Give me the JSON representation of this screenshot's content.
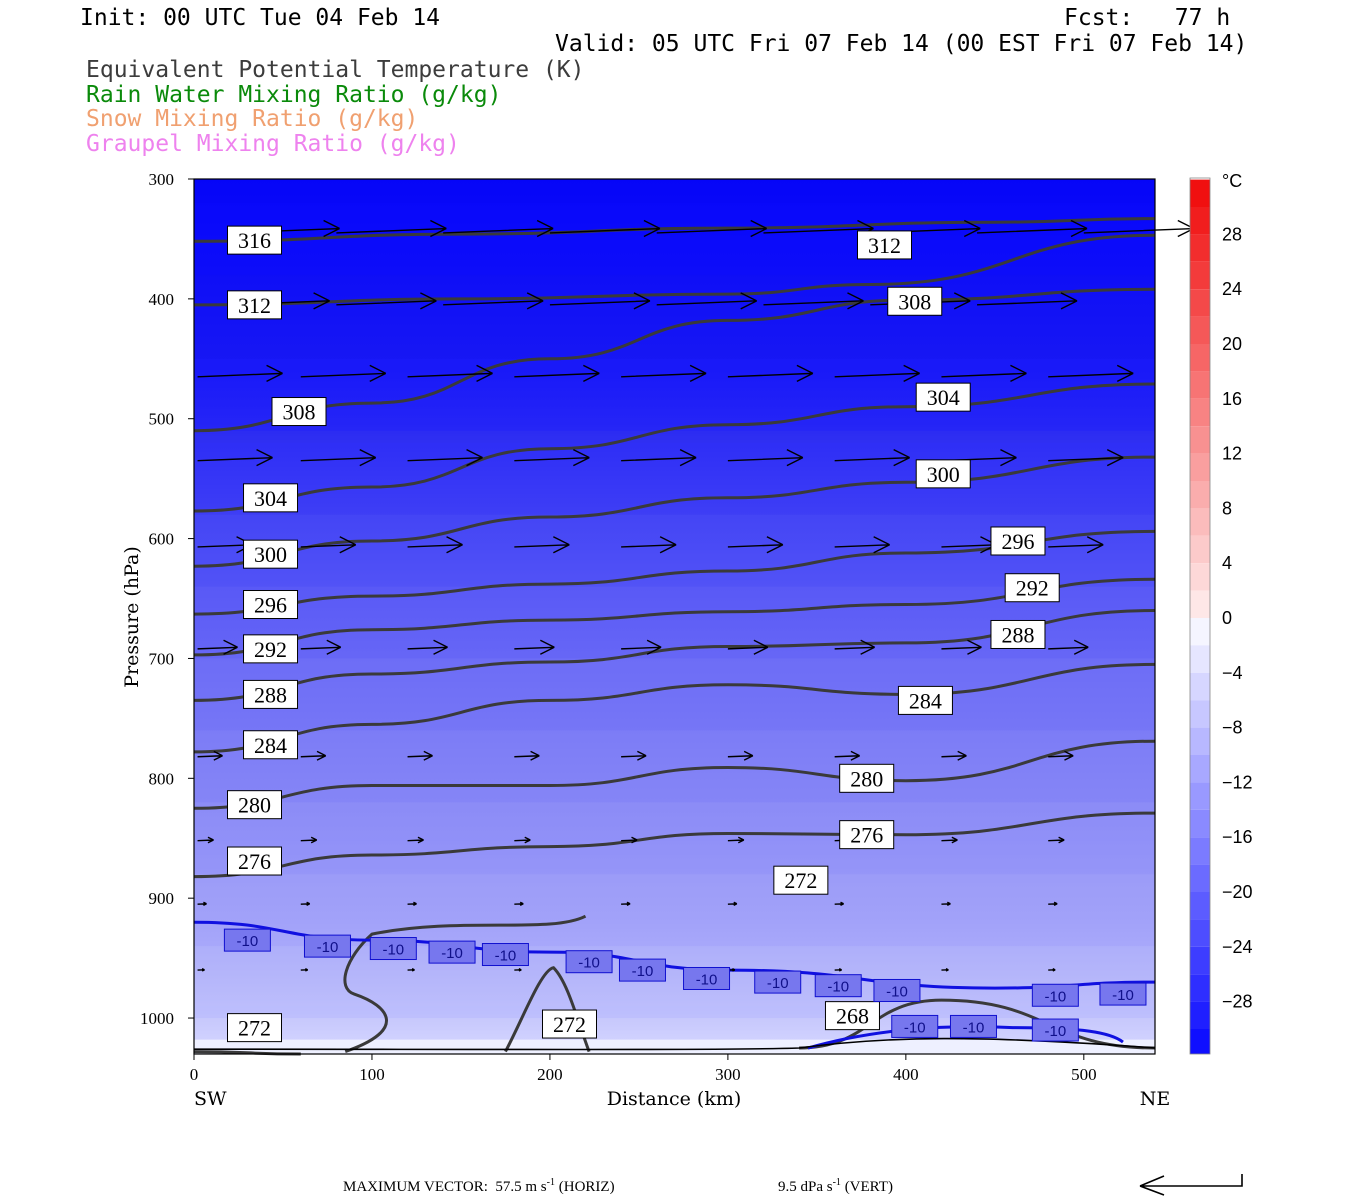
{
  "header": {
    "init": "Init: 00 UTC Tue 04 Feb 14",
    "fcst": "Fcst:   77 h",
    "valid": "Valid: 05 UTC Fri 07 Feb 14 (00 EST Fri 07 Feb 14)",
    "legend": [
      {
        "text": "Equivalent Potential Temperature (K)",
        "color": "#3c3c3c"
      },
      {
        "text": "Rain Water Mixing Ratio (g/kg)",
        "color": "#0a8a0a"
      },
      {
        "text": "Snow Mixing Ratio (g/kg)",
        "color": "#f0a070"
      },
      {
        "text": "Graupel Mixing Ratio (g/kg)",
        "color": "#ee82ee"
      }
    ]
  },
  "footer": {
    "max_vector_label": "MAXIMUM VECTOR:",
    "horiz_value": "57.5 m s",
    "horiz_exp": "-1",
    "horiz_tag": "(HORIZ)",
    "vert_value": "9.5 dPa s",
    "vert_exp": "-1",
    "vert_tag": "(VERT)"
  },
  "chart_data": {
    "type": "cross-section",
    "xlabel": "Distance (km)",
    "ylabel": "Pressure (hPa)",
    "x_left_end": "SW",
    "x_right_end": "NE",
    "xlim": [
      0,
      540
    ],
    "ylim": [
      1030,
      300
    ],
    "xticks": [
      0,
      100,
      200,
      300,
      400,
      500
    ],
    "yticks": [
      300,
      400,
      500,
      600,
      700,
      800,
      900,
      1000
    ],
    "colorbar": {
      "unit": "°C",
      "labels": [
        28,
        24,
        20,
        16,
        12,
        8,
        4,
        0,
        -4,
        -8,
        -12,
        -16,
        -20,
        -24,
        -28
      ],
      "warm_color": "#f01010",
      "cold_color": "#0000ff"
    },
    "theta_e_contours": [
      {
        "value": 316,
        "points": [
          [
            0,
            352
          ],
          [
            150,
            346
          ],
          [
            300,
            341
          ],
          [
            450,
            336
          ],
          [
            540,
            333
          ]
        ],
        "labels": [
          [
            34,
            351
          ]
        ]
      },
      {
        "value": 312,
        "points": [
          [
            0,
            405
          ],
          [
            150,
            400
          ],
          [
            300,
            396
          ],
          [
            380,
            388
          ],
          [
            540,
            347
          ]
        ],
        "labels": [
          [
            34,
            405
          ],
          [
            388,
            355
          ]
        ]
      },
      {
        "value": 308,
        "points": [
          [
            0,
            510
          ],
          [
            100,
            487
          ],
          [
            200,
            450
          ],
          [
            300,
            418
          ],
          [
            400,
            401
          ],
          [
            540,
            392
          ]
        ],
        "labels": [
          [
            59,
            494
          ],
          [
            405,
            402
          ]
        ]
      },
      {
        "value": 304,
        "points": [
          [
            0,
            577
          ],
          [
            100,
            557
          ],
          [
            200,
            525
          ],
          [
            300,
            505
          ],
          [
            400,
            490
          ],
          [
            540,
            471
          ]
        ],
        "labels": [
          [
            43,
            566
          ],
          [
            421,
            482
          ]
        ]
      },
      {
        "value": 300,
        "points": [
          [
            0,
            623
          ],
          [
            100,
            602
          ],
          [
            200,
            582
          ],
          [
            300,
            566
          ],
          [
            400,
            553
          ],
          [
            540,
            532
          ]
        ],
        "labels": [
          [
            43,
            613
          ],
          [
            421,
            546
          ]
        ]
      },
      {
        "value": 296,
        "points": [
          [
            0,
            663
          ],
          [
            100,
            648
          ],
          [
            200,
            638
          ],
          [
            300,
            627
          ],
          [
            400,
            612
          ],
          [
            540,
            594
          ]
        ],
        "labels": [
          [
            43,
            655
          ],
          [
            463,
            602
          ]
        ]
      },
      {
        "value": 292,
        "points": [
          [
            0,
            697
          ],
          [
            100,
            676
          ],
          [
            200,
            668
          ],
          [
            300,
            661
          ],
          [
            400,
            655
          ],
          [
            540,
            634
          ]
        ],
        "labels": [
          [
            43,
            692
          ],
          [
            471,
            641
          ]
        ]
      },
      {
        "value": 288,
        "points": [
          [
            0,
            735
          ],
          [
            100,
            713
          ],
          [
            200,
            703
          ],
          [
            300,
            690
          ],
          [
            400,
            687
          ],
          [
            540,
            660
          ]
        ],
        "labels": [
          [
            43,
            730
          ],
          [
            463,
            680
          ]
        ]
      },
      {
        "value": 284,
        "points": [
          [
            0,
            778
          ],
          [
            100,
            755
          ],
          [
            200,
            735
          ],
          [
            300,
            722
          ],
          [
            400,
            730
          ],
          [
            540,
            705
          ]
        ],
        "labels": [
          [
            43,
            772
          ],
          [
            411,
            735
          ]
        ]
      },
      {
        "value": 280,
        "points": [
          [
            0,
            825
          ],
          [
            100,
            806
          ],
          [
            200,
            806
          ],
          [
            300,
            791
          ],
          [
            400,
            802
          ],
          [
            540,
            769
          ]
        ],
        "labels": [
          [
            34,
            822
          ],
          [
            378,
            800
          ]
        ]
      },
      {
        "value": 276,
        "points": [
          [
            0,
            882
          ],
          [
            100,
            864
          ],
          [
            200,
            857
          ],
          [
            300,
            846
          ],
          [
            400,
            847
          ],
          [
            540,
            829
          ]
        ],
        "labels": [
          [
            34,
            869
          ],
          [
            378,
            847
          ]
        ]
      },
      {
        "value": 272,
        "points": [
          [
            0,
            1028
          ],
          [
            60,
            1030
          ]
        ],
        "labels": [
          [
            34,
            1008
          ],
          [
            211,
            1005
          ],
          [
            341,
            885
          ]
        ]
      },
      {
        "value": 268,
        "points": [
          [
            340,
            1025
          ],
          [
            420,
            985
          ],
          [
            540,
            1025
          ]
        ],
        "labels": [
          [
            370,
            998
          ]
        ]
      }
    ],
    "temperature_contours": [
      {
        "value": -10,
        "points": [
          [
            0,
            920
          ],
          [
            100,
            935
          ],
          [
            200,
            945
          ],
          [
            300,
            960
          ],
          [
            450,
            975
          ],
          [
            540,
            970
          ]
        ]
      }
    ],
    "shading_levels_C": [
      -30,
      -28,
      -26,
      -24,
      -22,
      -20,
      -18,
      -16,
      -14,
      -12,
      -10,
      -8,
      -6,
      -4,
      -2
    ]
  }
}
